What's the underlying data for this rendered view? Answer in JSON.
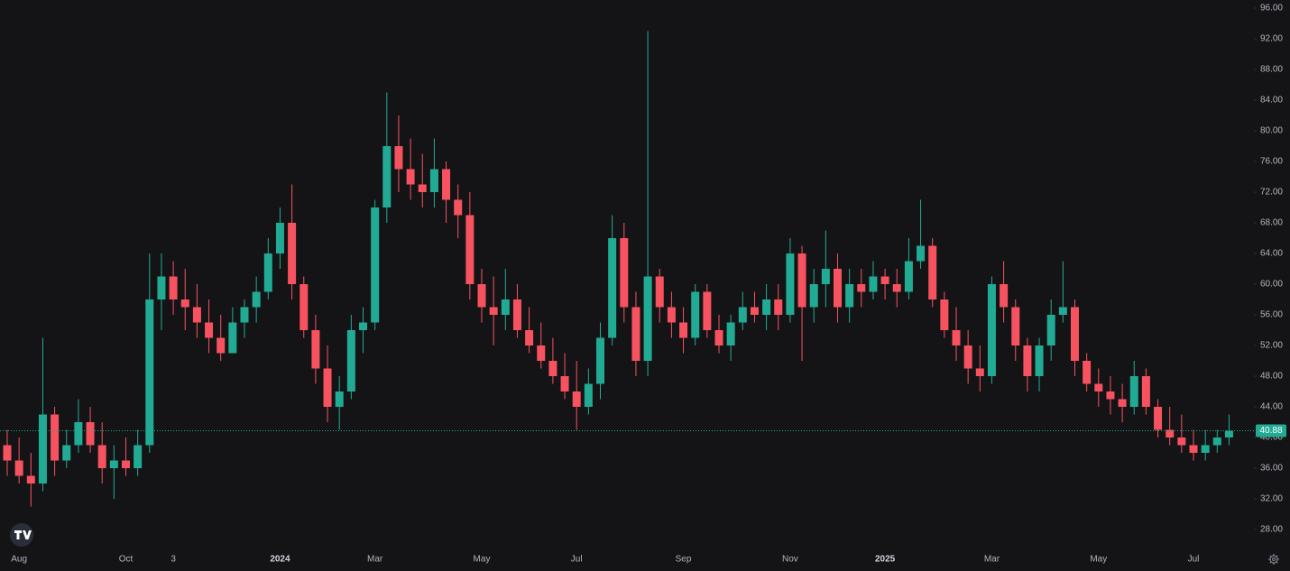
{
  "chart_data": {
    "type": "candlestick",
    "categories": [
      null,
      "Aug",
      null,
      null,
      null,
      null,
      null,
      null,
      null,
      null,
      "Oct",
      null,
      null,
      null,
      "3",
      null,
      null,
      null,
      null,
      null,
      null,
      null,
      null,
      "2024",
      null,
      null,
      null,
      null,
      null,
      null,
      null,
      "Mar",
      null,
      null,
      null,
      null,
      null,
      null,
      null,
      null,
      "May",
      null,
      null,
      null,
      null,
      null,
      null,
      null,
      "Jul",
      null,
      null,
      null,
      null,
      null,
      null,
      null,
      null,
      "Sep",
      null,
      null,
      null,
      null,
      null,
      null,
      null,
      null,
      "Nov",
      null,
      null,
      null,
      null,
      null,
      null,
      null,
      "2025",
      null,
      null,
      null,
      null,
      null,
      null,
      null,
      null,
      "Mar",
      null,
      null,
      null,
      null,
      null,
      null,
      null,
      null,
      "May",
      null,
      null,
      null,
      null,
      null,
      null,
      null,
      "Jul",
      null,
      null,
      null
    ],
    "open": [
      39,
      37,
      35,
      34,
      43,
      37,
      39,
      42,
      39,
      36,
      37,
      36,
      39,
      58,
      61,
      58,
      57,
      55,
      53,
      51,
      55,
      57,
      59,
      64,
      68,
      60,
      54,
      49,
      44,
      46,
      54,
      55,
      70,
      78,
      75,
      73,
      72,
      75,
      71,
      69,
      60,
      57,
      56,
      58,
      54,
      52,
      50,
      48,
      46,
      44,
      47,
      53,
      66,
      57,
      50,
      61,
      57,
      55,
      53,
      59,
      54,
      52,
      55,
      57,
      56,
      58,
      56,
      64,
      57,
      60,
      62,
      57,
      60,
      59,
      61,
      60,
      59,
      63,
      65,
      58,
      54,
      52,
      49,
      48,
      60,
      57,
      52,
      48,
      52,
      56,
      57,
      50,
      47,
      46,
      45,
      44,
      48,
      44,
      41,
      40,
      39,
      38,
      39,
      40
    ],
    "high": [
      41,
      40,
      38,
      53,
      44,
      41,
      45,
      44,
      42,
      39,
      40,
      41,
      64,
      64,
      63,
      62,
      60,
      58,
      56,
      57,
      58,
      61,
      66,
      70,
      73,
      61,
      56,
      52,
      48,
      56,
      57,
      71,
      85,
      82,
      79,
      77,
      79,
      76,
      73,
      72,
      62,
      61,
      62,
      60,
      57,
      55,
      53,
      51,
      50,
      49,
      55,
      69,
      68,
      59,
      93,
      62,
      59,
      57,
      60,
      60,
      56,
      56,
      59,
      59,
      60,
      60,
      66,
      65,
      62,
      67,
      64,
      62,
      62,
      63,
      62,
      62,
      66,
      71,
      66,
      59,
      57,
      54,
      52,
      61,
      63,
      58,
      53,
      53,
      58,
      63,
      58,
      51,
      49,
      48,
      47,
      50,
      49,
      45,
      44,
      43,
      41,
      41,
      41,
      43
    ],
    "low": [
      35,
      34,
      31,
      33,
      35,
      36,
      38,
      38,
      34,
      32,
      35,
      35,
      38,
      54,
      56,
      54,
      53,
      51,
      50,
      51,
      53,
      55,
      58,
      62,
      58,
      53,
      47,
      42,
      41,
      45,
      51,
      54,
      68,
      72,
      71,
      70,
      70,
      68,
      66,
      58,
      55,
      52,
      54,
      53,
      51,
      49,
      47,
      45,
      41,
      43,
      45,
      52,
      55,
      48,
      48,
      55,
      53,
      51,
      52,
      53,
      51,
      50,
      54,
      55,
      54,
      54,
      55,
      50,
      55,
      57,
      55,
      55,
      57,
      58,
      58,
      57,
      58,
      62,
      57,
      53,
      50,
      47,
      46,
      47,
      55,
      50,
      46,
      46,
      50,
      55,
      48,
      46,
      44,
      43,
      42,
      43,
      43,
      40,
      39,
      38,
      37,
      37,
      38,
      39
    ],
    "close": [
      37,
      35,
      34,
      43,
      37,
      39,
      42,
      39,
      36,
      37,
      36,
      39,
      58,
      61,
      58,
      57,
      55,
      53,
      51,
      55,
      57,
      59,
      64,
      68,
      60,
      54,
      49,
      44,
      46,
      54,
      55,
      70,
      78,
      75,
      73,
      72,
      75,
      71,
      69,
      60,
      57,
      56,
      58,
      54,
      52,
      50,
      48,
      46,
      44,
      47,
      53,
      66,
      57,
      50,
      61,
      57,
      55,
      53,
      59,
      54,
      52,
      55,
      57,
      56,
      58,
      56,
      64,
      57,
      60,
      62,
      57,
      60,
      59,
      61,
      60,
      59,
      63,
      65,
      58,
      54,
      52,
      49,
      48,
      60,
      57,
      52,
      48,
      52,
      56,
      57,
      50,
      47,
      46,
      45,
      44,
      48,
      44,
      41,
      40,
      39,
      38,
      39,
      40,
      40.88
    ],
    "up_color": "#22ab94",
    "down_color": "#f7525f",
    "last_price": 40.88,
    "ylim": [
      28,
      96
    ],
    "yticks": [
      {
        "value": 96,
        "label": "96.00"
      },
      {
        "value": 92,
        "label": "92.00"
      },
      {
        "value": 88,
        "label": "88.00"
      },
      {
        "value": 84,
        "label": "84.00"
      },
      {
        "value": 80,
        "label": "80.00"
      },
      {
        "value": 76,
        "label": "76.00"
      },
      {
        "value": 72,
        "label": "72.00"
      },
      {
        "value": 68,
        "label": "68.00"
      },
      {
        "value": 64,
        "label": "64.00"
      },
      {
        "value": 60,
        "label": "60.00"
      },
      {
        "value": 56,
        "label": "56.00"
      },
      {
        "value": 52,
        "label": "52.00"
      },
      {
        "value": 48,
        "label": "48.00"
      },
      {
        "value": 44,
        "label": "44.00"
      },
      {
        "value": 40,
        "label": "40.00"
      },
      {
        "value": 36,
        "label": "36.00"
      },
      {
        "value": 32,
        "label": "32.00"
      },
      {
        "value": 28,
        "label": "28.00"
      }
    ],
    "grid": false
  }
}
